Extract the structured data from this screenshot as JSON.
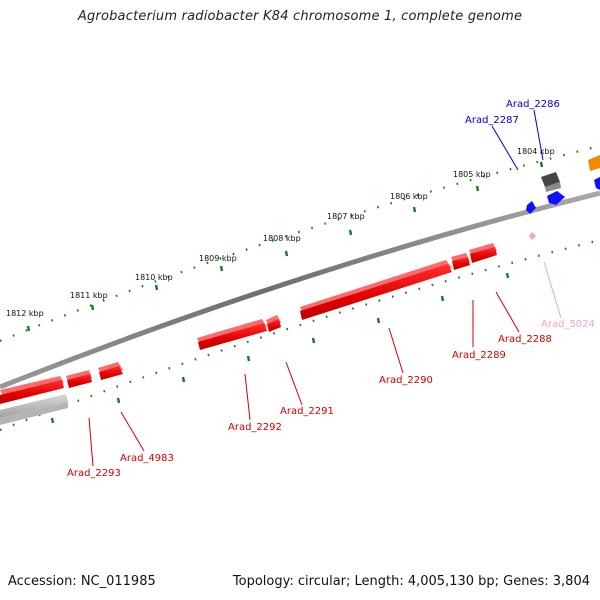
{
  "title": "Agrobacterium radiobacter K84 chromosome 1, complete genome",
  "accession": "Accession: NC_011985",
  "summary": "Topology: circular; Length: 4,005,130 bp; Genes: 3,804",
  "colors": {
    "forward_gene": "#e8000b",
    "reverse_gene": "#0000ee",
    "pseudo_gene": "#f4a0c8",
    "other_gene": "#555555",
    "orange_gene": "#f08a00",
    "tick": "#1a7a1a",
    "backbone": "#7a7a7a"
  },
  "ruler": {
    "labels": [
      "1804 kbp",
      "1805 kbp",
      "1806 kbp",
      "1807 kbp",
      "1808 kbp",
      "1809 kbp",
      "1810 kbp",
      "1811 kbp",
      "1812 kbp"
    ]
  },
  "genes": {
    "labels": [
      "Arad_2286",
      "Arad_2287",
      "Arad_2288",
      "Arad_2289",
      "Arad_2290",
      "Arad_2291",
      "Arad_2292",
      "Arad_4983",
      "Arad_2293",
      "Arad_5024"
    ]
  }
}
